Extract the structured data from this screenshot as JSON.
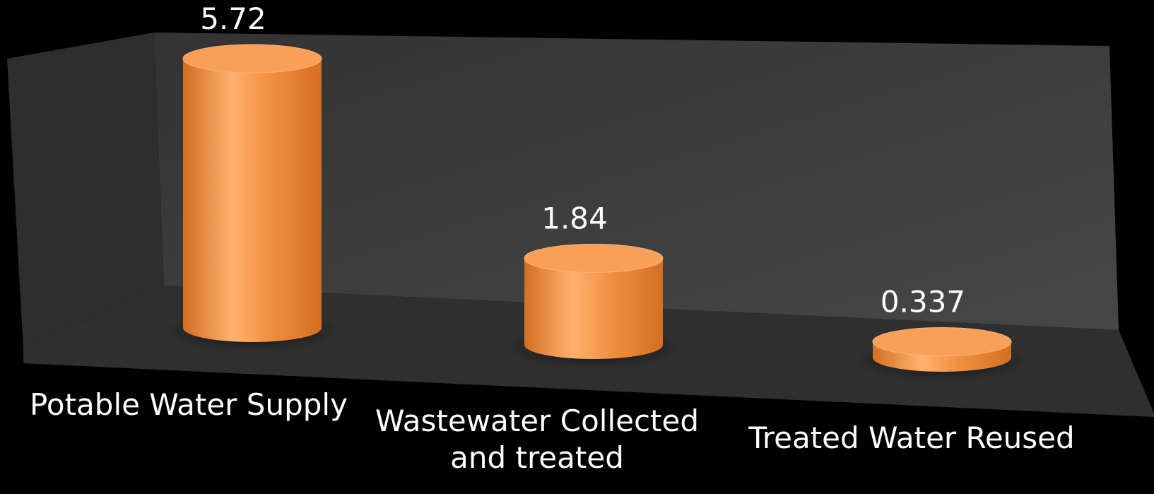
{
  "chart_data": {
    "type": "bar",
    "bar_shape": "cylinder-3d",
    "categories": [
      {
        "lines": [
          "Potable Water Supply"
        ]
      },
      {
        "lines": [
          "Wastewater Collected",
          "and treated"
        ]
      },
      {
        "lines": [
          "Treated Water Reused"
        ]
      }
    ],
    "values": [
      5.72,
      1.84,
      0.337
    ],
    "value_labels": [
      "5.72",
      "1.84",
      "0.337"
    ],
    "title": "",
    "xlabel": "",
    "ylabel": "",
    "grid": false,
    "legend": "none",
    "colors": {
      "background": "#000000",
      "back_wall": "#3d3d3d",
      "side_wall": "#2e2e2e",
      "floor": "#2f2f2f",
      "bar": "#f39243",
      "bar_dark": "#d46e22",
      "bar_light": "#ffb170",
      "bar_top": "#f8a05a",
      "text": "#ffffff"
    }
  }
}
